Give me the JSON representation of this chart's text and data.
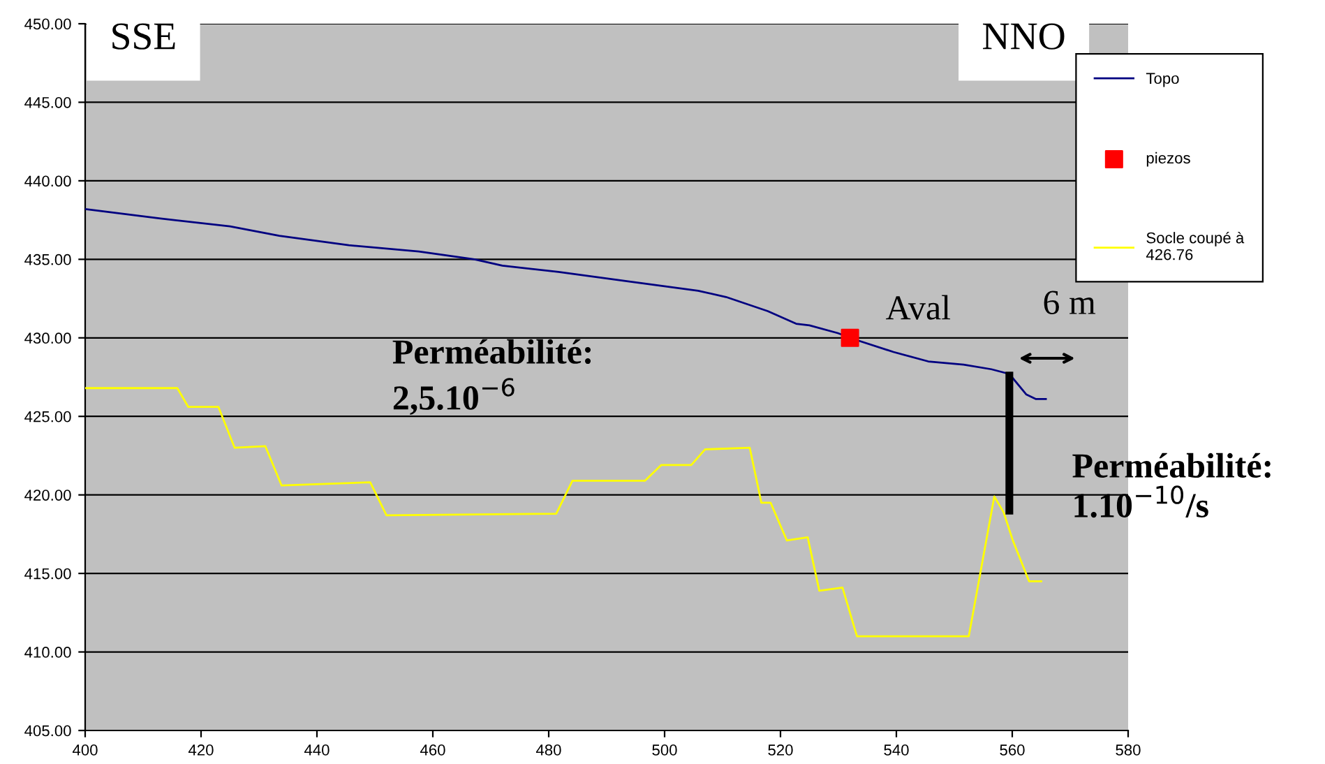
{
  "chart_data": {
    "type": "line",
    "xlim": [
      400,
      580
    ],
    "ylim": [
      405,
      450
    ],
    "xticks": [
      400,
      420,
      440,
      460,
      480,
      500,
      520,
      540,
      560,
      580
    ],
    "yticks": [
      {
        "value": 405,
        "label": "405.00"
      },
      {
        "value": 410,
        "label": "410.00"
      },
      {
        "value": 415,
        "label": "415.00"
      },
      {
        "value": 420,
        "label": "420.00"
      },
      {
        "value": 425,
        "label": "425.00"
      },
      {
        "value": 430,
        "label": "430.00"
      },
      {
        "value": 435,
        "label": "435.00"
      },
      {
        "value": 440,
        "label": "440.00"
      },
      {
        "value": 445,
        "label": "445.00"
      },
      {
        "value": 450,
        "label": "450.00"
      }
    ],
    "grid": "y",
    "legend": "top right",
    "series": [
      {
        "name": "Topo",
        "color": "#000080",
        "x": [
          400,
          413,
          425,
          433.5,
          445.5,
          457.6,
          467.2,
          472,
          481.7,
          493.7,
          505.8,
          510.6,
          517.8,
          522.7,
          525,
          529.9,
          532.8,
          539.5,
          545.5,
          551.6,
          556.4,
          559.5,
          562.4,
          564.1,
          565.8
        ],
        "values": [
          438.2,
          437.6,
          437.1,
          436.5,
          435.9,
          435.5,
          435.0,
          434.6,
          434.2,
          433.6,
          433.0,
          432.6,
          431.7,
          430.9,
          430.8,
          430.3,
          429.9,
          429.1,
          428.5,
          428.3,
          428.0,
          427.7,
          426.4,
          426.1,
          426.1
        ]
      },
      {
        "name": "piezos",
        "type": "scatter",
        "marker": "square",
        "color": "#ff0000",
        "x": [
          532
        ],
        "values": [
          430
        ]
      },
      {
        "name": "Socle coupé à\n426.76",
        "color": "#ffff00",
        "x": [
          400,
          415.9,
          417.8,
          423.0,
          425.8,
          431.1,
          433.9,
          449.2,
          452.0,
          481.3,
          484.1,
          496.6,
          499.4,
          504.6,
          507.0,
          514.7,
          516.7,
          518.3,
          521.1,
          524.7,
          526.7,
          530.7,
          533.2,
          552.5,
          556.9,
          558.5,
          560.1,
          562.9,
          565
        ],
        "values": [
          426.8,
          426.8,
          425.6,
          425.6,
          423.0,
          423.1,
          420.6,
          420.8,
          418.7,
          418.8,
          420.9,
          420.9,
          421.9,
          421.9,
          422.9,
          423.0,
          419.5,
          419.5,
          417.1,
          417.3,
          413.9,
          414.1,
          411.0,
          411.0,
          419.9,
          418.9,
          417.1,
          414.5,
          414.5
        ]
      },
      {
        "color": "#000000",
        "x": [
          559.5,
          559.5
        ],
        "values": [
          427.6,
          419.0
        ]
      }
    ],
    "annotations": [
      "SSE",
      "NNO",
      "Aval",
      "6 m",
      "Perméabilité:\n2,5.10$^{−6}$",
      "Perméabilité:\n1.10$^{−10}$/s"
    ]
  }
}
